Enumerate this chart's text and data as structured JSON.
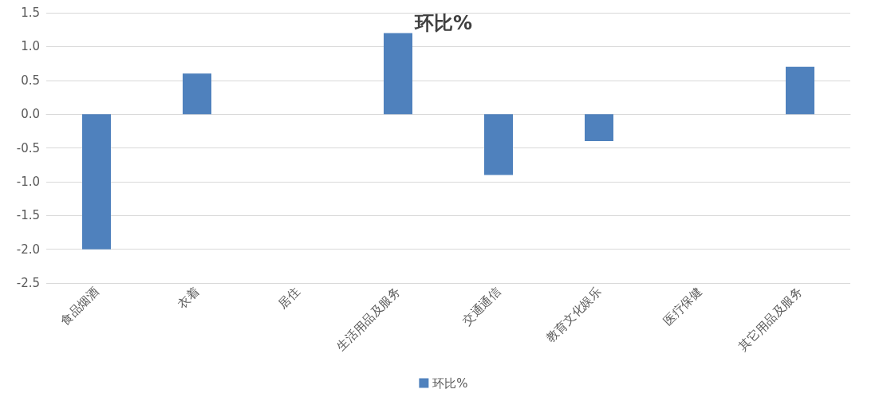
{
  "chart_data": {
    "type": "bar",
    "title": "环比%",
    "categories": [
      "食品烟酒",
      "衣着",
      "居住",
      "生活用品及服务",
      "交通通信",
      "教育文化娱乐",
      "医疗保健",
      "其它用品及服务"
    ],
    "series": [
      {
        "name": "环比%",
        "color": "#4f81bd",
        "values": [
          -2.0,
          0.6,
          0,
          1.2,
          -0.9,
          -0.4,
          0,
          0.7
        ]
      }
    ],
    "ylim": [
      -2.5,
      1.5
    ],
    "yticks": [
      {
        "value": -2.5,
        "label": "-2.5"
      },
      {
        "value": -2,
        "label": "-2.0"
      },
      {
        "value": -1.5,
        "label": "-1.5"
      },
      {
        "value": -1,
        "label": "-1.0"
      },
      {
        "value": -0.5,
        "label": "-0.5"
      },
      {
        "value": 0,
        "label": "0.0"
      },
      {
        "value": 0.5,
        "label": "0.5"
      },
      {
        "value": 1,
        "label": "1.0"
      },
      {
        "value": 1.5,
        "label": "1.5"
      }
    ],
    "grid": "y",
    "legend": "bottom"
  }
}
